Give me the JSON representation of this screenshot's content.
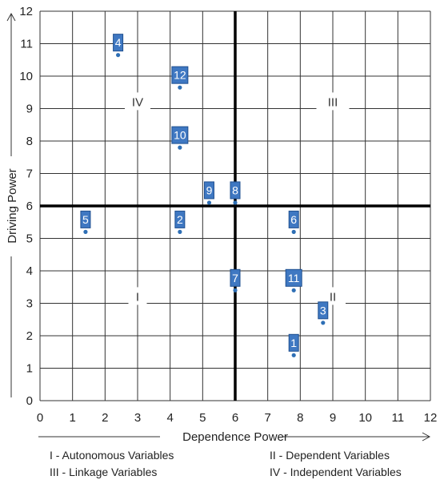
{
  "chart_data": {
    "type": "scatter",
    "title": "",
    "xlabel": "Dependence Power",
    "ylabel": "Driving Power",
    "xlim": [
      0,
      12
    ],
    "ylim": [
      0,
      12
    ],
    "x_ticks": [
      "0",
      "1",
      "2",
      "3",
      "4",
      "5",
      "6",
      "7",
      "8",
      "9",
      "10",
      "11",
      "12"
    ],
    "y_ticks": [
      "0",
      "1",
      "2",
      "3",
      "4",
      "5",
      "6",
      "7",
      "8",
      "9",
      "10",
      "11",
      "12"
    ],
    "grid": true,
    "divider_lines": {
      "x": 6,
      "y": 6
    },
    "quadrant_labels": [
      {
        "text": "I",
        "x": 3,
        "y": 3.2
      },
      {
        "text": "II",
        "x": 9,
        "y": 3.2
      },
      {
        "text": "III",
        "x": 9,
        "y": 9.2
      },
      {
        "text": "IV",
        "x": 3,
        "y": 9.2
      }
    ],
    "points": [
      {
        "label": "1",
        "x": 7.8,
        "y": 1.4
      },
      {
        "label": "2",
        "x": 4.3,
        "y": 5.2
      },
      {
        "label": "3",
        "x": 8.7,
        "y": 2.4
      },
      {
        "label": "4",
        "x": 2.4,
        "y": 10.65
      },
      {
        "label": "5",
        "x": 1.4,
        "y": 5.2
      },
      {
        "label": "6",
        "x": 7.8,
        "y": 5.2
      },
      {
        "label": "7",
        "x": 6.0,
        "y": 3.4
      },
      {
        "label": "8",
        "x": 6.0,
        "y": 6.1
      },
      {
        "label": "9",
        "x": 5.2,
        "y": 6.1
      },
      {
        "label": "10",
        "x": 4.3,
        "y": 7.8
      },
      {
        "label": "11",
        "x": 7.8,
        "y": 3.4
      },
      {
        "label": "12",
        "x": 4.3,
        "y": 9.65
      }
    ],
    "point_color": "#2e6fb5",
    "marker_color": "#3f78c2"
  },
  "legend": {
    "items": [
      "I - Autonomous Variables",
      "II - Dependent Variables",
      "III - Linkage Variables",
      "IV - Independent Variables"
    ]
  }
}
